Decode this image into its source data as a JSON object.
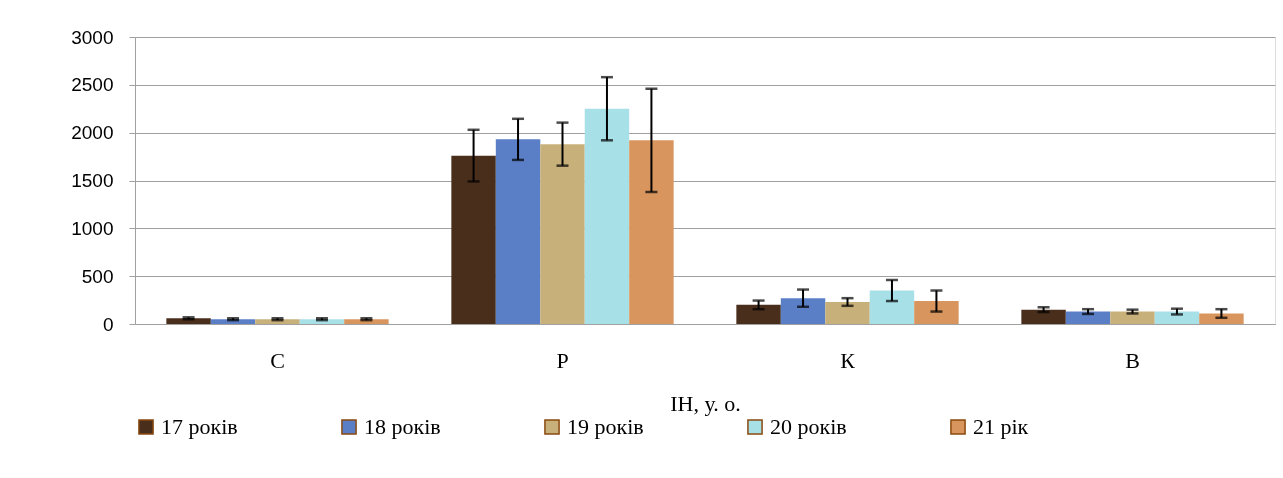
{
  "chart_data": {
    "type": "bar",
    "xlabel": "ІН, у. о.",
    "categories": [
      "С",
      "Р",
      "К",
      "В"
    ],
    "series": [
      {
        "name": "17 років",
        "color": "#4a2e1c",
        "values": [
          60,
          1760,
          200,
          150
        ],
        "errors": [
          10,
          270,
          45,
          25
        ]
      },
      {
        "name": "18 років",
        "color": "#5b7fc7",
        "values": [
          50,
          1930,
          270,
          130
        ],
        "errors": [
          10,
          215,
          90,
          25
        ]
      },
      {
        "name": "19 років",
        "color": "#c8b07a",
        "values": [
          50,
          1880,
          230,
          130
        ],
        "errors": [
          10,
          225,
          40,
          20
        ]
      },
      {
        "name": "20 років",
        "color": "#a8e0e8",
        "values": [
          50,
          2250,
          350,
          130
        ],
        "errors": [
          10,
          330,
          110,
          30
        ]
      },
      {
        "name": "21 рік",
        "color": "#d9955e",
        "values": [
          50,
          1920,
          240,
          110
        ],
        "errors": [
          10,
          540,
          110,
          45
        ]
      }
    ],
    "ylim": [
      0,
      3000
    ],
    "yticks": [
      0,
      500,
      1000,
      1500,
      2000,
      2500,
      3000
    ],
    "grid": "y",
    "legend": "bottom"
  }
}
